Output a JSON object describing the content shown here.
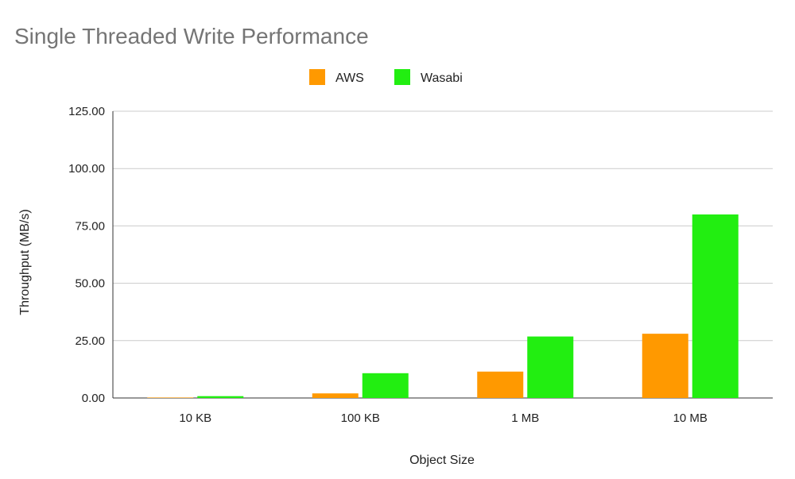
{
  "chart_data": {
    "type": "bar",
    "title": "Single Threaded Write Performance",
    "xlabel": "Object Size",
    "ylabel": "Throughput (MB/s)",
    "categories": [
      "10 KB",
      "100 KB",
      "1 MB",
      "10 MB"
    ],
    "series": [
      {
        "name": "AWS",
        "color": "#ff9900",
        "values": [
          0.2,
          2.0,
          11.5,
          28.0
        ]
      },
      {
        "name": "Wasabi",
        "color": "#22ee11",
        "values": [
          0.8,
          10.8,
          26.8,
          80.0
        ]
      }
    ],
    "ylim": [
      0,
      125
    ],
    "yticks": [
      "0.00",
      "25.00",
      "50.00",
      "75.00",
      "100.00",
      "125.00"
    ],
    "grid": true,
    "legend_position": "top-center"
  }
}
